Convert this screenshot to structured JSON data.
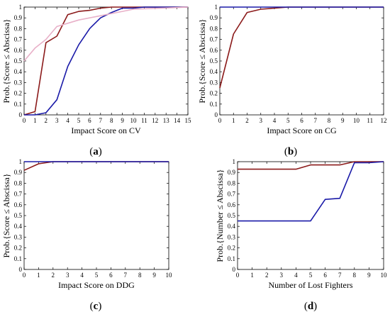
{
  "chart_data": [
    {
      "panel": "(a)",
      "caption_open": "(",
      "caption_letter": "a",
      "caption_close": ")",
      "type": "line",
      "xlabel": "Impact Score on CV",
      "ylabel": "Prob.{Score ≤ Abscissa}",
      "xlim": [
        0,
        15
      ],
      "ylim": [
        0,
        1
      ],
      "xticks": [
        "0",
        "1",
        "2",
        "3",
        "4",
        "5",
        "6",
        "7",
        "8",
        "9",
        "10",
        "11",
        "12",
        "13",
        "14",
        "15"
      ],
      "yticks": [
        "0",
        "0.1",
        "0.2",
        "0.3",
        "0.4",
        "0.5",
        "0.6",
        "0.7",
        "0.8",
        "0.9",
        "1"
      ],
      "grid": false,
      "series": [
        {
          "color": "#8b1a1a",
          "x": [
            0,
            1,
            2,
            3,
            4,
            5,
            6,
            7,
            8,
            9,
            10,
            15
          ],
          "y": [
            0,
            0.03,
            0.67,
            0.73,
            0.93,
            0.96,
            0.97,
            0.99,
            1,
            1,
            1,
            1
          ]
        },
        {
          "color": "#1a1aa8",
          "x": [
            0,
            1,
            2,
            3,
            4,
            5,
            6,
            7,
            8,
            9,
            10,
            11,
            12,
            15
          ],
          "y": [
            0,
            0,
            0.02,
            0.14,
            0.45,
            0.65,
            0.8,
            0.9,
            0.95,
            0.99,
            0.99,
            1,
            1,
            1
          ]
        },
        {
          "color": "#e8b0c8",
          "x": [
            0,
            1,
            2,
            3,
            4,
            5,
            6,
            7,
            8,
            9,
            10,
            15
          ],
          "y": [
            0.5,
            0.62,
            0.7,
            0.82,
            0.85,
            0.88,
            0.9,
            0.92,
            0.94,
            0.96,
            0.98,
            1
          ]
        }
      ]
    },
    {
      "panel": "(b)",
      "caption_open": "(",
      "caption_letter": "b",
      "caption_close": ")",
      "type": "line",
      "xlabel": "Impact Score on CG",
      "ylabel": "Prob.{Score ≤ Abscissa}",
      "xlim": [
        0,
        12
      ],
      "ylim": [
        0,
        1
      ],
      "xticks": [
        "0",
        "1",
        "2",
        "3",
        "4",
        "5",
        "6",
        "7",
        "8",
        "9",
        "10",
        "11",
        "12"
      ],
      "yticks": [
        "0",
        "0.1",
        "0.2",
        "0.3",
        "0.4",
        "0.5",
        "0.6",
        "0.7",
        "0.8",
        "0.9",
        "1"
      ],
      "grid": false,
      "series": [
        {
          "color": "#8b1a1a",
          "x": [
            0,
            1,
            2,
            3,
            4,
            5,
            12
          ],
          "y": [
            0.25,
            0.75,
            0.95,
            0.98,
            0.99,
            1,
            1
          ]
        },
        {
          "color": "#1a1aa8",
          "x": [
            0,
            12
          ],
          "y": [
            1,
            1
          ]
        }
      ]
    },
    {
      "panel": "(c)",
      "caption_open": "(",
      "caption_letter": "c",
      "caption_close": ")",
      "type": "line",
      "xlabel": "Impact Score on DDG",
      "ylabel": "Prob.{Score ≤ Abscissa}",
      "xlim": [
        0,
        10
      ],
      "ylim": [
        0,
        1
      ],
      "xticks": [
        "0",
        "1",
        "2",
        "3",
        "4",
        "5",
        "6",
        "7",
        "8",
        "9",
        "10"
      ],
      "yticks": [
        "0",
        "0.1",
        "0.2",
        "0.3",
        "0.4",
        "0.5",
        "0.6",
        "0.7",
        "0.8",
        "0.9",
        "1"
      ],
      "grid": false,
      "series": [
        {
          "color": "#8b1a1a",
          "x": [
            0,
            1,
            2,
            10
          ],
          "y": [
            0.92,
            0.98,
            1,
            1
          ]
        },
        {
          "color": "#1a1aa8",
          "x": [
            0,
            10
          ],
          "y": [
            1,
            1
          ]
        }
      ]
    },
    {
      "panel": "(d)",
      "caption_open": "(",
      "caption_letter": "d",
      "caption_close": ")",
      "type": "line",
      "xlabel": "Number of Lost Fighters",
      "ylabel": "Prob.{Number ≤ Abscissa}",
      "xlim": [
        0,
        10
      ],
      "ylim": [
        0,
        1
      ],
      "xticks": [
        "0",
        "1",
        "2",
        "3",
        "4",
        "5",
        "6",
        "7",
        "8",
        "9",
        "10"
      ],
      "yticks": [
        "0",
        "0.1",
        "0.2",
        "0.3",
        "0.4",
        "0.5",
        "0.6",
        "0.7",
        "0.8",
        "0.9",
        "1"
      ],
      "grid": false,
      "series": [
        {
          "color": "#8b1a1a",
          "x": [
            0,
            4,
            5,
            6,
            7,
            8,
            9,
            10
          ],
          "y": [
            0.93,
            0.93,
            0.97,
            0.97,
            0.97,
            1,
            1,
            1
          ]
        },
        {
          "color": "#1a1aa8",
          "x": [
            0,
            5,
            6,
            7,
            8,
            9,
            10
          ],
          "y": [
            0.45,
            0.45,
            0.65,
            0.66,
            0.99,
            0.99,
            1
          ]
        }
      ]
    }
  ]
}
